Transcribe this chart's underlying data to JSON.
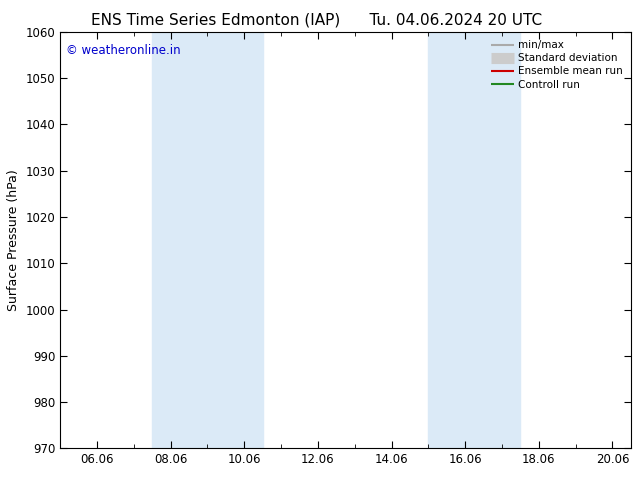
{
  "title_left": "ENS Time Series Edmonton (IAP)",
  "title_right": "Tu. 04.06.2024 20 UTC",
  "ylabel": "Surface Pressure (hPa)",
  "ylim": [
    970,
    1060
  ],
  "yticks": [
    970,
    980,
    990,
    1000,
    1010,
    1020,
    1030,
    1040,
    1050,
    1060
  ],
  "xlim_start": 5.0,
  "xlim_end": 20.5,
  "xtick_labels": [
    "06.06",
    "08.06",
    "10.06",
    "12.06",
    "14.06",
    "16.06",
    "18.06",
    "20.06"
  ],
  "xtick_positions": [
    6,
    8,
    10,
    12,
    14,
    16,
    18,
    20
  ],
  "shaded_bands": [
    {
      "x_start": 7.5,
      "x_end": 10.5,
      "color": "#dbeaf7"
    },
    {
      "x_start": 15.0,
      "x_end": 17.5,
      "color": "#dbeaf7"
    }
  ],
  "watermark": "© weatheronline.in",
  "watermark_color": "#0000cc",
  "legend_entries": [
    {
      "label": "min/max",
      "color": "#aaaaaa",
      "lw": 1.5,
      "style": "line"
    },
    {
      "label": "Standard deviation",
      "color": "#cccccc",
      "lw": 8,
      "style": "bar"
    },
    {
      "label": "Ensemble mean run",
      "color": "#cc0000",
      "lw": 1.5,
      "style": "line"
    },
    {
      "label": "Controll run",
      "color": "#228822",
      "lw": 1.5,
      "style": "line"
    }
  ],
  "bg_color": "#ffffff",
  "plot_bg_color": "#ffffff",
  "title_fontsize": 11,
  "axis_label_fontsize": 9,
  "tick_fontsize": 8.5,
  "watermark_fontsize": 8.5
}
